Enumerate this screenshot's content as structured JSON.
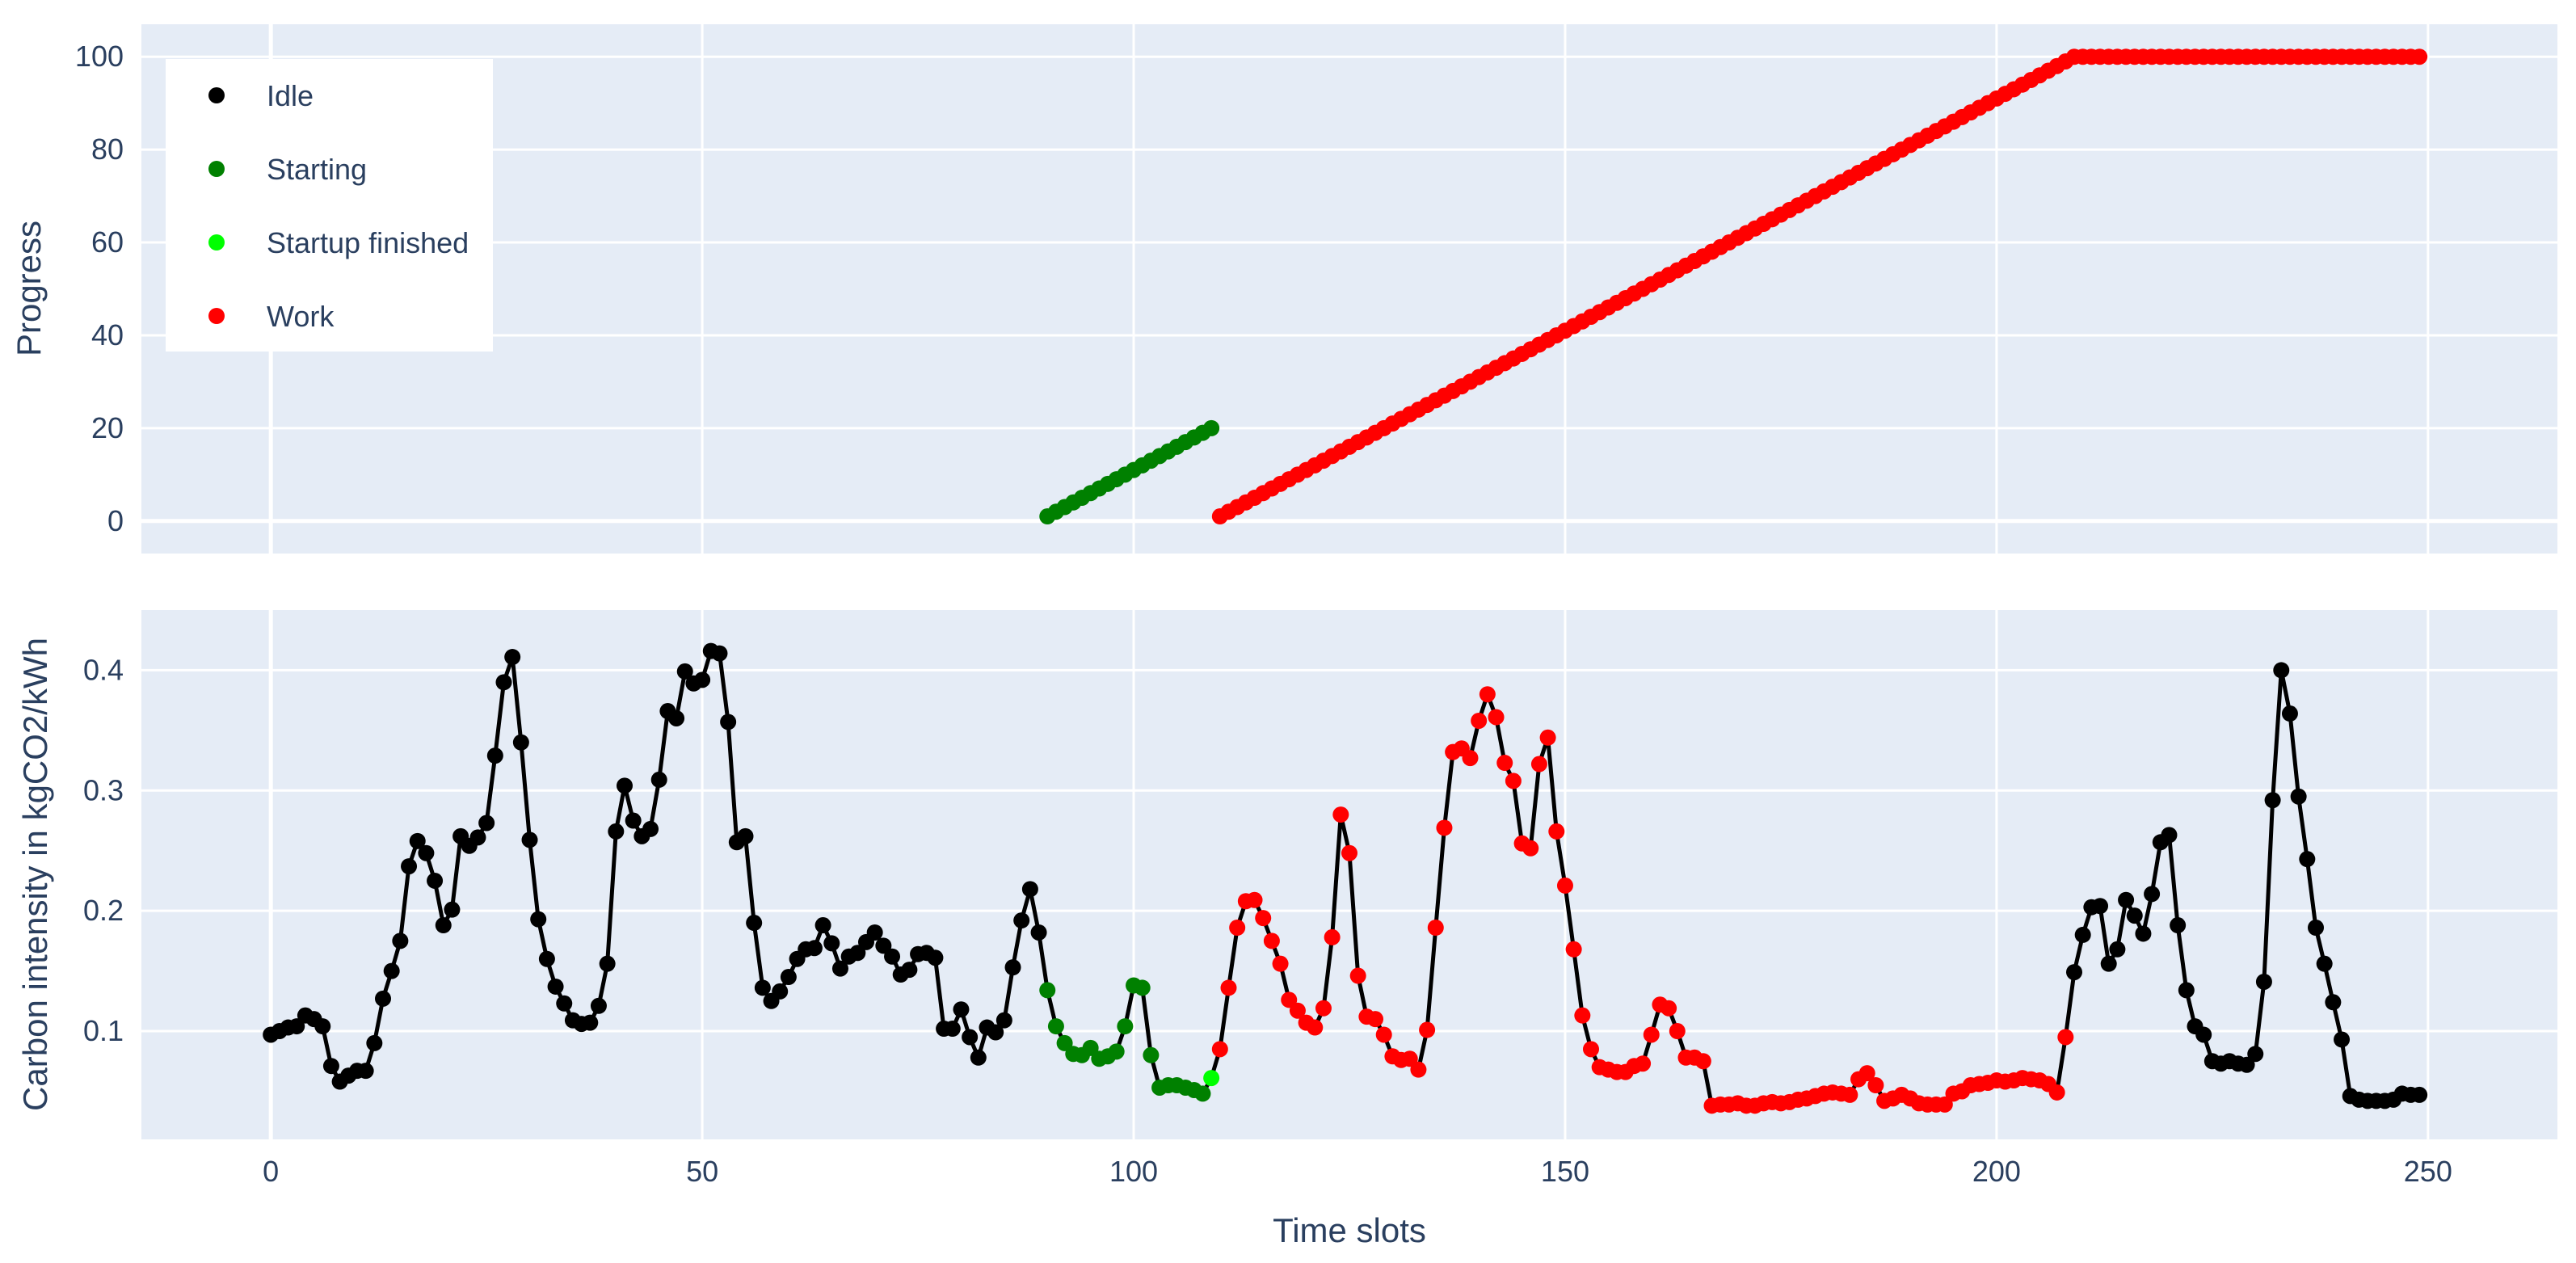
{
  "chart_data": [
    {
      "type": "scatter",
      "ylabel": "Progress",
      "xlim": [
        -15,
        265
      ],
      "ylim": [
        -7,
        107
      ],
      "xticks": [
        0,
        50,
        100,
        150,
        200,
        250
      ],
      "yticks": [
        0,
        20,
        40,
        60,
        80,
        100
      ],
      "grid": true,
      "legend_position": "top-left",
      "legend": [
        {
          "label": "Idle",
          "color": "#000000"
        },
        {
          "label": "Starting",
          "color": "#008000"
        },
        {
          "label": "Startup finished",
          "color": "#00ff00"
        },
        {
          "label": "Work",
          "color": "#ff0000"
        }
      ],
      "series": [
        {
          "name": "Starting",
          "color": "#008000",
          "x_start": 90,
          "x_end": 109,
          "y_start": 1,
          "y_end": 20
        },
        {
          "name": "Work",
          "color": "#ff0000",
          "x_start": 110,
          "x_end": 209,
          "y_start": 1,
          "y_end": 100,
          "hold_until": 249
        }
      ]
    },
    {
      "type": "line",
      "ylabel": "Carbon intensity in kgCO2/kWh",
      "xlabel": "Time slots",
      "xlim": [
        -15,
        265
      ],
      "ylim": [
        0.01,
        0.45
      ],
      "xticks": [
        0,
        50,
        100,
        150,
        200,
        250
      ],
      "yticks": [
        0.1,
        0.2,
        0.3,
        0.4
      ],
      "grid": true,
      "line_color": "#000000",
      "phases": [
        {
          "name": "Idle",
          "color": "#000000",
          "from": 0,
          "to": 89
        },
        {
          "name": "Starting",
          "color": "#008000",
          "from": 90,
          "to": 108
        },
        {
          "name": "Startup finished",
          "color": "#00ff00",
          "from": 109,
          "to": 109
        },
        {
          "name": "Work",
          "color": "#ff0000",
          "from": 110,
          "to": 208
        },
        {
          "name": "Idle",
          "color": "#000000",
          "from": 209,
          "to": 249
        }
      ],
      "x_start": 0,
      "values": [
        0.097,
        0.1,
        0.103,
        0.104,
        0.113,
        0.11,
        0.104,
        0.071,
        0.058,
        0.063,
        0.067,
        0.067,
        0.09,
        0.127,
        0.15,
        0.175,
        0.237,
        0.258,
        0.248,
        0.225,
        0.188,
        0.201,
        0.262,
        0.254,
        0.261,
        0.273,
        0.329,
        0.39,
        0.411,
        0.34,
        0.259,
        0.193,
        0.16,
        0.137,
        0.123,
        0.109,
        0.106,
        0.107,
        0.121,
        0.156,
        0.266,
        0.304,
        0.275,
        0.262,
        0.268,
        0.309,
        0.366,
        0.36,
        0.399,
        0.389,
        0.392,
        0.416,
        0.414,
        0.357,
        0.257,
        0.262,
        0.19,
        0.136,
        0.125,
        0.133,
        0.145,
        0.16,
        0.168,
        0.169,
        0.188,
        0.173,
        0.152,
        0.162,
        0.165,
        0.174,
        0.182,
        0.171,
        0.162,
        0.147,
        0.151,
        0.164,
        0.165,
        0.161,
        0.102,
        0.102,
        0.118,
        0.095,
        0.078,
        0.103,
        0.099,
        0.109,
        0.153,
        0.192,
        0.218,
        0.182,
        0.134,
        0.104,
        0.09,
        0.081,
        0.08,
        0.086,
        0.077,
        0.079,
        0.083,
        0.104,
        0.138,
        0.136,
        0.08,
        0.053,
        0.055,
        0.055,
        0.053,
        0.051,
        0.048,
        0.061,
        0.085,
        0.136,
        0.186,
        0.208,
        0.209,
        0.194,
        0.175,
        0.156,
        0.126,
        0.117,
        0.107,
        0.103,
        0.119,
        0.178,
        0.28,
        0.248,
        0.146,
        0.112,
        0.11,
        0.097,
        0.079,
        0.076,
        0.077,
        0.068,
        0.101,
        0.186,
        0.269,
        0.332,
        0.335,
        0.327,
        0.358,
        0.38,
        0.361,
        0.323,
        0.308,
        0.256,
        0.252,
        0.322,
        0.344,
        0.266,
        0.221,
        0.168,
        0.113,
        0.085,
        0.07,
        0.068,
        0.066,
        0.066,
        0.071,
        0.073,
        0.097,
        0.122,
        0.119,
        0.1,
        0.078,
        0.078,
        0.075,
        0.038,
        0.039,
        0.039,
        0.04,
        0.038,
        0.038,
        0.04,
        0.041,
        0.04,
        0.041,
        0.043,
        0.044,
        0.046,
        0.048,
        0.049,
        0.048,
        0.047,
        0.06,
        0.065,
        0.055,
        0.042,
        0.044,
        0.047,
        0.044,
        0.04,
        0.039,
        0.039,
        0.039,
        0.048,
        0.05,
        0.055,
        0.056,
        0.057,
        0.059,
        0.058,
        0.059,
        0.061,
        0.06,
        0.059,
        0.056,
        0.049,
        0.095,
        0.149,
        0.18,
        0.203,
        0.204,
        0.156,
        0.168,
        0.209,
        0.196,
        0.181,
        0.214,
        0.257,
        0.263,
        0.188,
        0.134,
        0.104,
        0.097,
        0.075,
        0.073,
        0.075,
        0.073,
        0.072,
        0.081,
        0.141,
        0.292,
        0.4,
        0.364,
        0.295,
        0.243,
        0.186,
        0.156,
        0.124,
        0.093,
        0.046,
        0.043,
        0.042,
        0.042,
        0.042,
        0.043,
        0.048,
        0.047,
        0.047
      ]
    }
  ]
}
